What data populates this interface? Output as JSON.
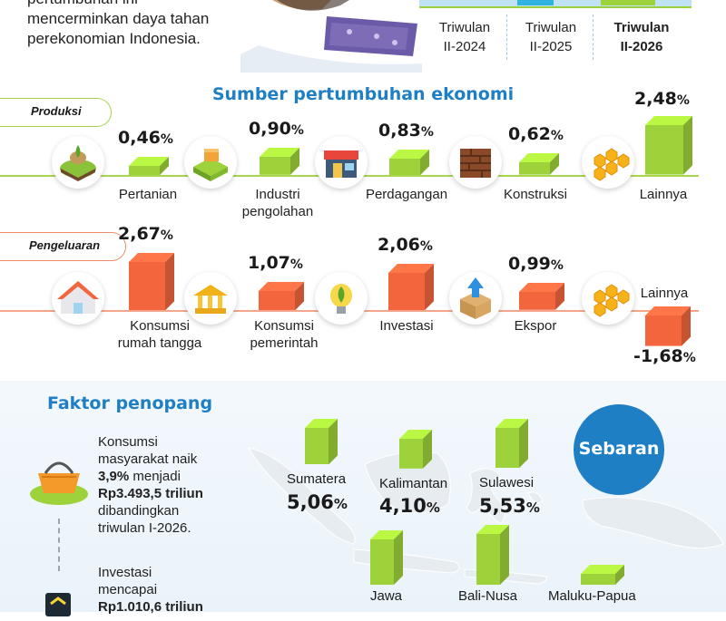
{
  "header": {
    "text_line1": "pertumbuhan ini",
    "text_line2": "mencerminkan daya tahan",
    "text_line3": "perekonomian Indonesia."
  },
  "quarters": [
    {
      "line1": "Triwulan",
      "line2": "II-2024",
      "bold": false
    },
    {
      "line1": "Triwulan",
      "line2": "II-2025",
      "bold": false
    },
    {
      "line1": "Triwulan",
      "line2": "II-2026",
      "bold": true
    }
  ],
  "section_sources": {
    "title": "Sumber pertumbuhan ekonomi"
  },
  "produksi": {
    "tag": "Produksi",
    "items": [
      {
        "label_line1": "Pertanian",
        "label_line2": "",
        "value_text": "0,46",
        "icon": "farm-field-icon"
      },
      {
        "label_line1": "Industri",
        "label_line2": "pengolahan",
        "value_text": "0,90",
        "icon": "factory-icon"
      },
      {
        "label_line1": "Perdagangan",
        "label_line2": "",
        "value_text": "0,83",
        "icon": "store-icon"
      },
      {
        "label_line1": "Konstruksi",
        "label_line2": "",
        "value_text": "0,62",
        "icon": "brick-wall-icon"
      },
      {
        "label_line1": "Lainnya",
        "label_line2": "",
        "value_text": "2,48",
        "icon": "hexagon-cluster-icon"
      }
    ]
  },
  "pengeluaran": {
    "tag": "Pengeluaran",
    "items": [
      {
        "label_line1": "Konsumsi",
        "label_line2": "rumah tangga",
        "value_text": "2,67",
        "icon": "house-icon"
      },
      {
        "label_line1": "Konsumsi",
        "label_line2": "pemerintah",
        "value_text": "1,07",
        "icon": "government-building-icon"
      },
      {
        "label_line1": "Investasi",
        "label_line2": "",
        "value_text": "2,06",
        "icon": "seedling-bulb-icon"
      },
      {
        "label_line1": "Ekspor",
        "label_line2": "",
        "value_text": "0,99",
        "icon": "export-box-icon"
      },
      {
        "label_line1": "Lainnya",
        "label_line2": "",
        "value_text": "-1,68",
        "icon": "hexagon-cluster-icon"
      }
    ]
  },
  "percent_sign": "%",
  "faktor": {
    "title": "Faktor penopang",
    "item1": {
      "line1": "Konsumsi",
      "line2": "masyarakat naik",
      "line3_bold": "3,9%",
      "line3_rest": " menjadi",
      "line4_bold": "Rp3.493,5 triliun",
      "line5": "dibandingkan",
      "line6": "triwulan I-2026.",
      "icon": "shopping-basket-icon"
    },
    "item2": {
      "line1": "Investasi",
      "line2": "mencapai",
      "line3_bold": "Rp1.010,6 triliun",
      "icon": "investment-icon"
    }
  },
  "sebaran": {
    "badge": "Sebaran",
    "regions": [
      {
        "name": "Sumatera",
        "value_text": "5,06",
        "show_value": true
      },
      {
        "name": "Kalimantan",
        "value_text": "4,10",
        "show_value": true
      },
      {
        "name": "Sulawesi",
        "value_text": "5,53",
        "show_value": true
      },
      {
        "name": "Jawa",
        "value_text": "",
        "show_value": false
      },
      {
        "name": "Bali-Nusa",
        "value_text": "",
        "show_value": false
      },
      {
        "name": "Maluku-Papua",
        "value_text": "",
        "show_value": false
      }
    ]
  },
  "colors": {
    "title_blue": "#1f7fc4",
    "green": "#9ed23a",
    "orange": "#f2653d",
    "badge_blue": "#1f7fc4"
  },
  "chart_data": [
    {
      "type": "bar",
      "title": "Produksi",
      "categories": [
        "Pertanian",
        "Industri pengolahan",
        "Perdagangan",
        "Konstruksi",
        "Lainnya"
      ],
      "values": [
        0.46,
        0.9,
        0.83,
        0.62,
        2.48
      ],
      "unit": "%",
      "ylim": [
        0,
        2.6
      ]
    },
    {
      "type": "bar",
      "title": "Pengeluaran",
      "categories": [
        "Konsumsi rumah tangga",
        "Konsumsi pemerintah",
        "Investasi",
        "Ekspor",
        "Lainnya"
      ],
      "values": [
        2.67,
        1.07,
        2.06,
        0.99,
        -1.68
      ],
      "unit": "%",
      "ylim": [
        -1.8,
        2.8
      ]
    },
    {
      "type": "bar",
      "title": "Sebaran",
      "categories": [
        "Sumatera",
        "Kalimantan",
        "Sulawesi"
      ],
      "values": [
        5.06,
        4.1,
        5.53
      ],
      "unit": "%"
    }
  ]
}
